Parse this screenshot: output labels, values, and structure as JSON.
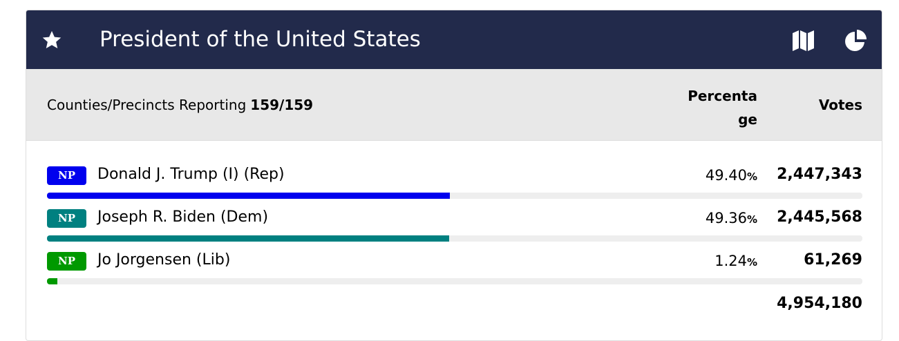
{
  "header": {
    "title": "President of the United States"
  },
  "reporting": {
    "label": "Counties/Precincts Reporting",
    "value": "159/159"
  },
  "columns": {
    "percentage": "Percentage",
    "votes": "Votes"
  },
  "candidates": [
    {
      "badge": "NP",
      "name": "Donald J. Trump (I) (Rep)",
      "percent": "49.40",
      "unit": "%",
      "votes": "2,447,343",
      "color": "#0000ee"
    },
    {
      "badge": "NP",
      "name": "Joseph R. Biden (Dem)",
      "percent": "49.36",
      "unit": "%",
      "votes": "2,445,568",
      "color": "#008080"
    },
    {
      "badge": "NP",
      "name": "Jo Jorgensen (Lib)",
      "percent": "1.24",
      "unit": "%",
      "votes": "61,269",
      "color": "#009900"
    }
  ],
  "total": "4,954,180"
}
